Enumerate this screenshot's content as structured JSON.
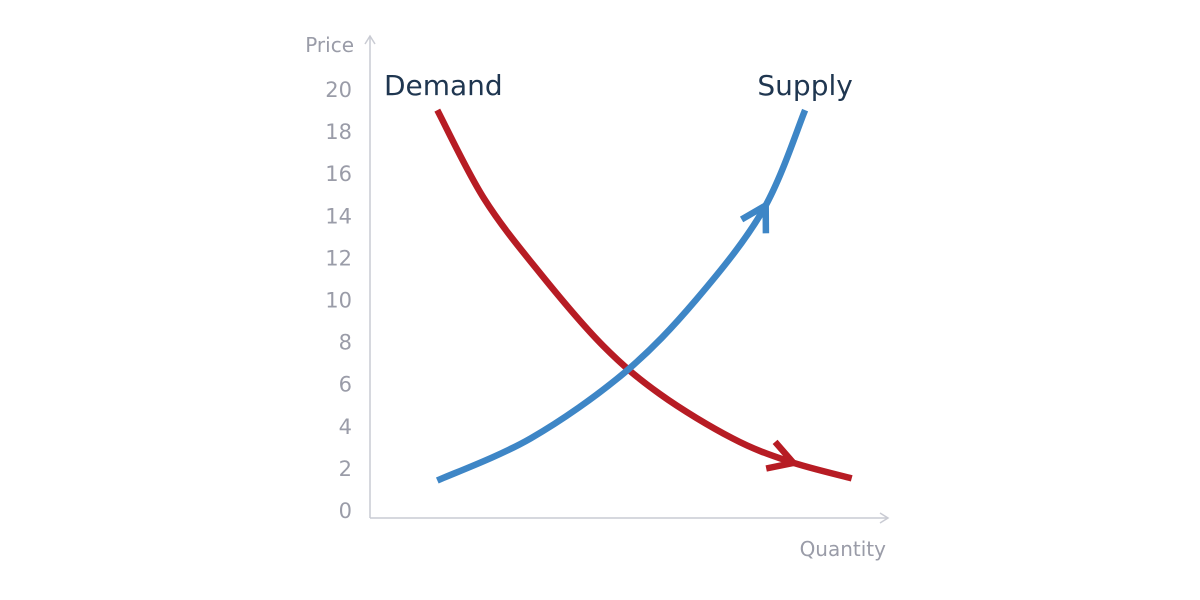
{
  "chart_data": {
    "type": "line",
    "title": "",
    "xlabel": "Quantity",
    "ylabel": "Price",
    "yticks": [
      "0",
      "2",
      "4",
      "6",
      "8",
      "10",
      "12",
      "14",
      "16",
      "18",
      "20"
    ],
    "ylim": [
      0,
      20
    ],
    "grid": false,
    "legend": "none",
    "series": [
      {
        "name": "Demand",
        "color": "#b71c24",
        "arrow": "down-right",
        "points": [
          {
            "x": 0.13,
            "y": 19.0
          },
          {
            "x": 0.22,
            "y": 14.8
          },
          {
            "x": 0.33,
            "y": 11.2
          },
          {
            "x": 0.45,
            "y": 7.8
          },
          {
            "x": 0.56,
            "y": 5.5
          },
          {
            "x": 0.7,
            "y": 3.4
          },
          {
            "x": 0.81,
            "y": 2.3
          },
          {
            "x": 0.93,
            "y": 1.5
          }
        ]
      },
      {
        "name": "Supply",
        "color": "#3e86c6",
        "arrow": "up-right",
        "points": [
          {
            "x": 0.13,
            "y": 1.4
          },
          {
            "x": 0.31,
            "y": 3.4
          },
          {
            "x": 0.49,
            "y": 6.5
          },
          {
            "x": 0.63,
            "y": 10.0
          },
          {
            "x": 0.76,
            "y": 14.3
          },
          {
            "x": 0.84,
            "y": 19.0
          }
        ]
      }
    ]
  }
}
